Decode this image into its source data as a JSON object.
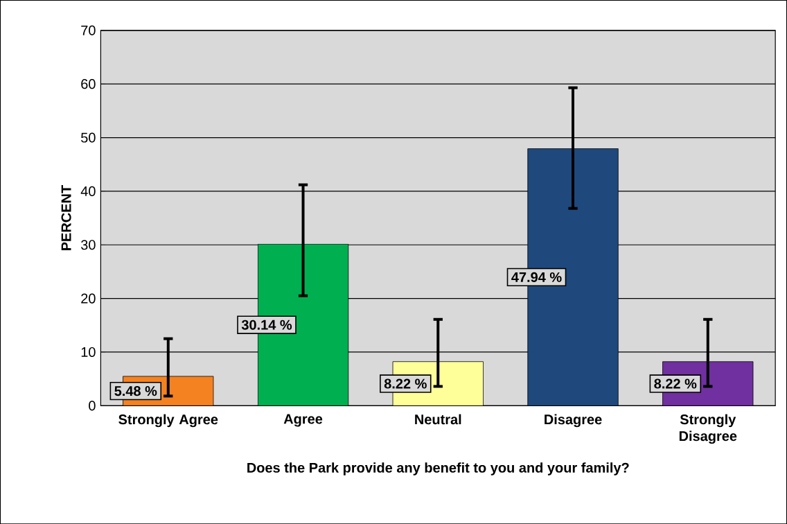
{
  "chart_data": {
    "type": "bar",
    "categories": [
      "Strongly Agree",
      "Agree",
      "Neutral",
      "Disagree",
      "Strongly Disagree"
    ],
    "values": [
      5.48,
      30.14,
      8.22,
      47.94,
      8.22
    ],
    "colors": [
      "#f58220",
      "#00b050",
      "#ffff99",
      "#1f497d",
      "#7030a0"
    ],
    "errors": [
      [
        1.8,
        12.5
      ],
      [
        20.5,
        41.2
      ],
      [
        3.6,
        16.1
      ],
      [
        36.8,
        59.3
      ],
      [
        3.6,
        16.1
      ]
    ],
    "value_labels": [
      "5.48 %",
      "30.14 %",
      "8.22 %",
      "47.94 %",
      "8.22 %"
    ],
    "xlabel": "Does the Park provide any benefit to you and your family?",
    "ylabel": "PERCENT",
    "ylim": [
      0,
      70
    ],
    "yticks": [
      0,
      10,
      20,
      30,
      40,
      50,
      60,
      70
    ],
    "grid": "y"
  }
}
